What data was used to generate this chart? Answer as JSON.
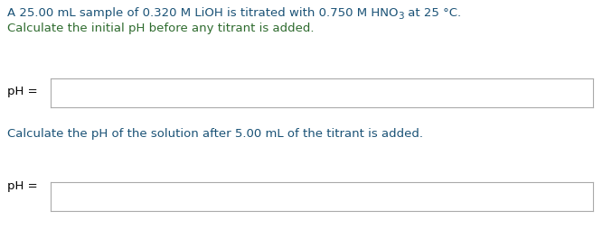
{
  "blue": "#1a5276",
  "green": "#2e6b2e",
  "black": "#000000",
  "bg": "#ffffff",
  "box_edge": "#aaaaaa",
  "line1_main": "A 25.00 mL sample of 0.320 M LiOH is titrated with 0.750 M HNO",
  "line1_sub": "3",
  "line1_end": " at 25 °C.",
  "line2": "Calculate the initial pH before any titrant is added.",
  "line3_green": "Calculate the pH of the ",
  "line3_blue": "solution",
  "line3_green2": " after ",
  "line3_blue2": "5.00 mL",
  "line3_green3": " of the titrant is added.",
  "ph_label": "pH =",
  "fontsize": 9.5,
  "sub_fontsize": 7.5,
  "figsize": [
    6.77,
    2.55
  ],
  "dpi": 100
}
